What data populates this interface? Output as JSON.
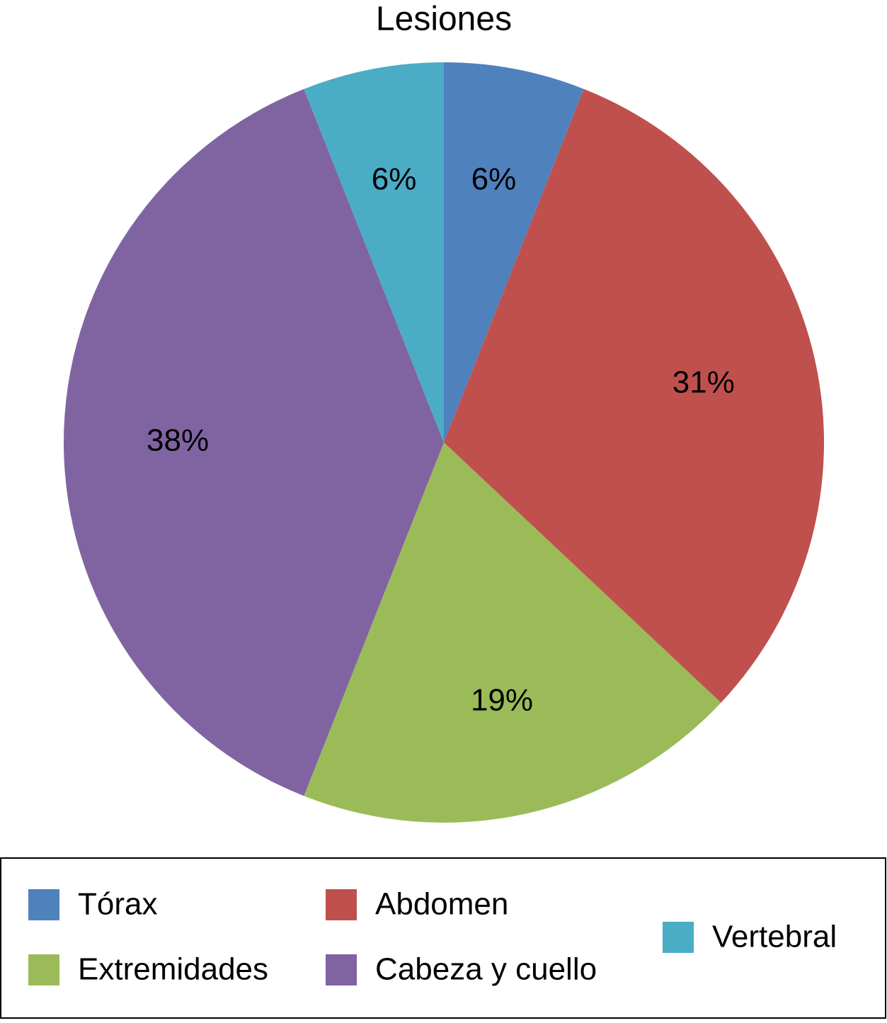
{
  "chart_data": {
    "type": "pie",
    "title": "Lesiones",
    "categories": [
      "Tórax",
      "Abdomen",
      "Extremidades",
      "Cabeza y cuello",
      "Vertebral"
    ],
    "values": [
      6,
      31,
      19,
      38,
      6
    ],
    "value_labels": [
      "6%",
      "31%",
      "19%",
      "38%",
      "6%"
    ],
    "colors": [
      "#4f81bd",
      "#c0504d",
      "#9bbb59",
      "#8064a2",
      "#4bacc6"
    ],
    "legend": "bottom"
  }
}
